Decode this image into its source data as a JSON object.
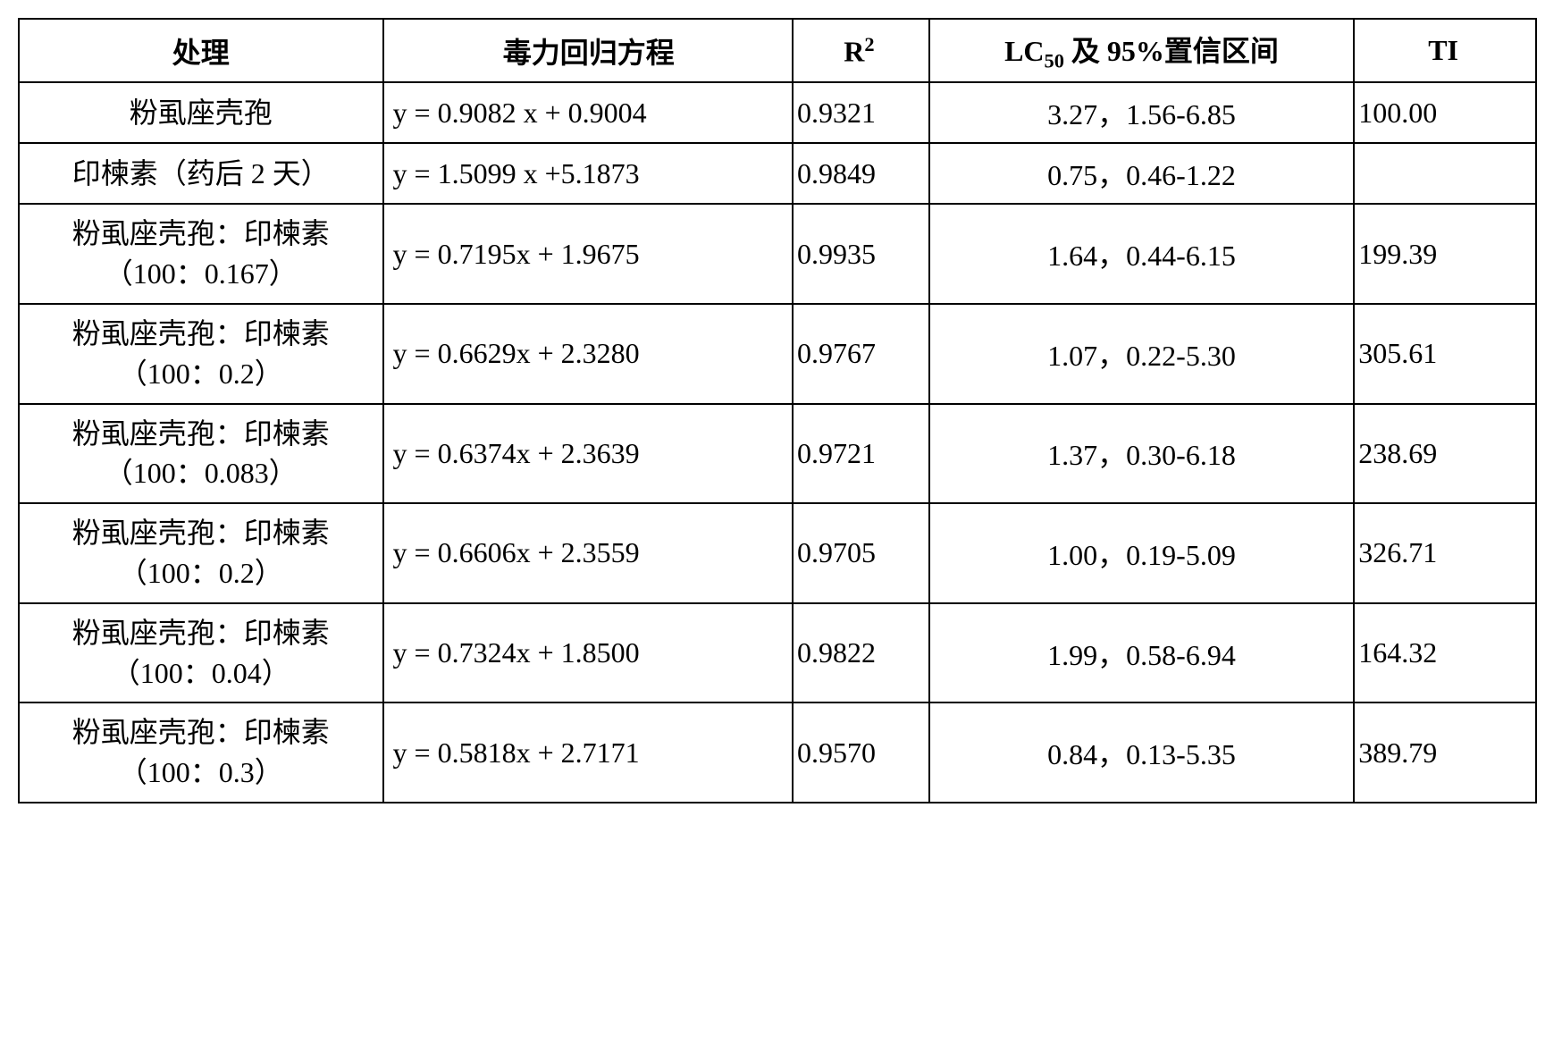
{
  "table": {
    "headers": {
      "treatment": "处理",
      "equation": "毒力回归方程",
      "r2_html": "R<sup>2</sup>",
      "lc50_html": "LC<sub>50</sub> 及 95%置信区间",
      "ti": "TI"
    },
    "rows": [
      {
        "treatment_html": "粉虱座壳孢",
        "equation": "y = 0.9082 x + 0.9004",
        "r2": "0.9321",
        "lc50": "3.27，1.56-6.85",
        "ti": "100.00"
      },
      {
        "treatment_html": "印楝素（药后 2 天）",
        "equation": "y = 1.5099 x +5.1873",
        "r2": "0.9849",
        "lc50": "0.75，0.46-1.22",
        "ti": ""
      },
      {
        "treatment_html": "粉虱座壳孢：印楝素<br>（100：0.167）",
        "equation": "y = 0.7195x + 1.9675",
        "r2": "0.9935",
        "lc50": "1.64，0.44-6.15",
        "ti": "199.39"
      },
      {
        "treatment_html": "粉虱座壳孢：印楝素<br>（100：0.2）",
        "equation": "y = 0.6629x + 2.3280",
        "r2": "0.9767",
        "lc50": "1.07，0.22-5.30",
        "ti": "305.61"
      },
      {
        "treatment_html": "粉虱座壳孢：印楝素<br>（100：0.083）",
        "equation": "y = 0.6374x + 2.3639",
        "r2": "0.9721",
        "lc50": "1.37，0.30-6.18",
        "ti": "238.69"
      },
      {
        "treatment_html": "粉虱座壳孢：印楝素<br>（100：0.2）",
        "equation": "y = 0.6606x + 2.3559",
        "r2": "0.9705",
        "lc50": "1.00，0.19-5.09",
        "ti": "326.71"
      },
      {
        "treatment_html": "粉虱座壳孢：印楝素<br>（100：0.04）",
        "equation": "y = 0.7324x + 1.8500",
        "r2": "0.9822",
        "lc50": "1.99，0.58-6.94",
        "ti": "164.32"
      },
      {
        "treatment_html": "粉虱座壳孢：印楝素<br>（100：0.3）",
        "equation": "y = 0.5818x + 2.7171",
        "r2": "0.9570",
        "lc50": "0.84，0.13-5.35",
        "ti": "389.79"
      }
    ],
    "border_color": "#000000",
    "background_color": "#ffffff",
    "text_color": "#000000",
    "font_size": 32
  }
}
